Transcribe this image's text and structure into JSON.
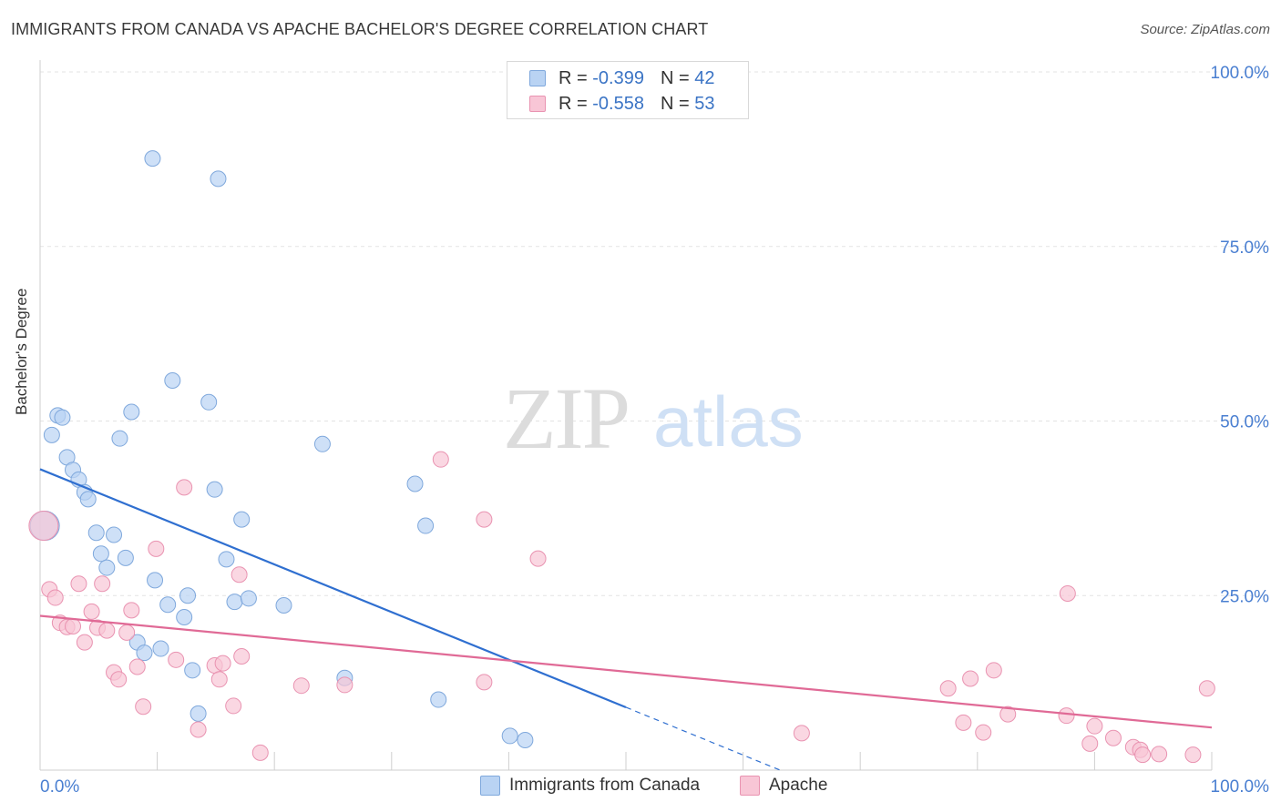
{
  "title": "IMMIGRANTS FROM CANADA VS APACHE BACHELOR'S DEGREE CORRELATION CHART",
  "source": "Source: ZipAtlas.com",
  "watermark": {
    "zip": "ZIP",
    "atlas": "atlas"
  },
  "legend": {
    "series1": {
      "r_label": "R =",
      "r_value": "-0.399",
      "n_label": "N =",
      "n_value": "42"
    },
    "series2": {
      "r_label": "R =",
      "r_value": "-0.558",
      "n_label": "N =",
      "n_value": "53"
    }
  },
  "colors": {
    "blue_fill": "#b9d3f3",
    "blue_stroke": "#7fa8dc",
    "blue_line": "#2f6fd0",
    "pink_fill": "#f8c6d6",
    "pink_stroke": "#e993b1",
    "pink_line": "#e06a96",
    "tick_label": "#4a7fd1"
  },
  "chart_data": {
    "type": "scatter",
    "title": "IMMIGRANTS FROM CANADA VS APACHE BACHELOR'S DEGREE CORRELATION CHART",
    "xlabel": "",
    "ylabel": "Bachelor's Degree",
    "xlim": [
      0,
      100
    ],
    "ylim": [
      0,
      100
    ],
    "x_tick_labels": [
      "0.0%",
      "100.0%"
    ],
    "y_ticks": [
      25,
      50,
      75,
      100
    ],
    "y_tick_labels": [
      "25.0%",
      "50.0%",
      "75.0%",
      "100.0%"
    ],
    "grid": true,
    "legend_position": "top-center",
    "series": [
      {
        "name": "Immigrants from Canada",
        "color": "#b9d3f3",
        "points": [
          [
            0.4,
            35.0
          ],
          [
            1.0,
            48.0
          ],
          [
            1.5,
            50.8
          ],
          [
            1.9,
            50.5
          ],
          [
            2.3,
            44.8
          ],
          [
            2.8,
            43.0
          ],
          [
            3.3,
            41.6
          ],
          [
            3.8,
            39.8
          ],
          [
            4.1,
            38.8
          ],
          [
            4.8,
            34.0
          ],
          [
            5.2,
            31.0
          ],
          [
            5.7,
            29.0
          ],
          [
            6.3,
            33.7
          ],
          [
            6.8,
            47.5
          ],
          [
            7.3,
            30.4
          ],
          [
            7.8,
            51.3
          ],
          [
            8.3,
            18.3
          ],
          [
            8.9,
            16.8
          ],
          [
            9.6,
            87.6
          ],
          [
            9.8,
            27.2
          ],
          [
            10.3,
            17.4
          ],
          [
            10.9,
            23.7
          ],
          [
            11.3,
            55.8
          ],
          [
            12.3,
            21.9
          ],
          [
            12.6,
            25.0
          ],
          [
            13.0,
            14.3
          ],
          [
            13.5,
            8.1
          ],
          [
            14.4,
            52.7
          ],
          [
            14.9,
            40.2
          ],
          [
            15.2,
            84.7
          ],
          [
            15.9,
            30.2
          ],
          [
            16.6,
            24.1
          ],
          [
            17.2,
            35.9
          ],
          [
            17.8,
            24.6
          ],
          [
            20.8,
            23.6
          ],
          [
            24.1,
            46.7
          ],
          [
            26.0,
            13.2
          ],
          [
            32.0,
            41.0
          ],
          [
            32.9,
            35.0
          ],
          [
            34.0,
            10.1
          ],
          [
            40.1,
            4.9
          ],
          [
            41.4,
            4.3
          ]
        ]
      },
      {
        "name": "Apache",
        "color": "#f8c6d6",
        "points": [
          [
            0.3,
            35.0
          ],
          [
            0.8,
            25.9
          ],
          [
            1.3,
            24.7
          ],
          [
            1.7,
            21.1
          ],
          [
            2.3,
            20.5
          ],
          [
            2.8,
            20.6
          ],
          [
            3.3,
            26.7
          ],
          [
            3.8,
            18.3
          ],
          [
            4.4,
            22.7
          ],
          [
            4.9,
            20.4
          ],
          [
            5.3,
            26.7
          ],
          [
            5.7,
            20.0
          ],
          [
            6.3,
            14.0
          ],
          [
            6.7,
            13.0
          ],
          [
            7.4,
            19.7
          ],
          [
            7.8,
            22.9
          ],
          [
            8.3,
            14.8
          ],
          [
            8.8,
            9.1
          ],
          [
            9.9,
            31.7
          ],
          [
            11.6,
            15.8
          ],
          [
            12.3,
            40.5
          ],
          [
            13.5,
            5.8
          ],
          [
            14.9,
            15.0
          ],
          [
            15.3,
            13.0
          ],
          [
            15.6,
            15.3
          ],
          [
            16.5,
            9.2
          ],
          [
            17.0,
            28.0
          ],
          [
            17.2,
            16.3
          ],
          [
            18.8,
            2.5
          ],
          [
            22.3,
            12.1
          ],
          [
            26.0,
            12.2
          ],
          [
            34.2,
            44.5
          ],
          [
            37.9,
            12.6
          ],
          [
            37.9,
            35.9
          ],
          [
            42.5,
            30.3
          ],
          [
            65.0,
            5.3
          ],
          [
            77.5,
            11.7
          ],
          [
            78.8,
            6.8
          ],
          [
            79.4,
            13.1
          ],
          [
            80.5,
            5.4
          ],
          [
            81.4,
            14.3
          ],
          [
            82.6,
            8.0
          ],
          [
            87.6,
            7.8
          ],
          [
            87.7,
            25.3
          ],
          [
            89.6,
            3.8
          ],
          [
            90.0,
            6.3
          ],
          [
            91.6,
            4.6
          ],
          [
            93.3,
            3.3
          ],
          [
            93.9,
            2.9
          ],
          [
            94.1,
            2.2
          ],
          [
            95.5,
            2.3
          ],
          [
            98.4,
            2.2
          ],
          [
            99.6,
            11.7
          ]
        ]
      }
    ],
    "trendlines": [
      {
        "series": "Immigrants from Canada",
        "x": [
          0,
          50
        ],
        "y": [
          43.1,
          9.0
        ],
        "dashed_extension_to": [
          63.3,
          -0.1
        ]
      },
      {
        "series": "Apache",
        "x": [
          0,
          100
        ],
        "y": [
          22.1,
          6.1
        ]
      }
    ]
  }
}
